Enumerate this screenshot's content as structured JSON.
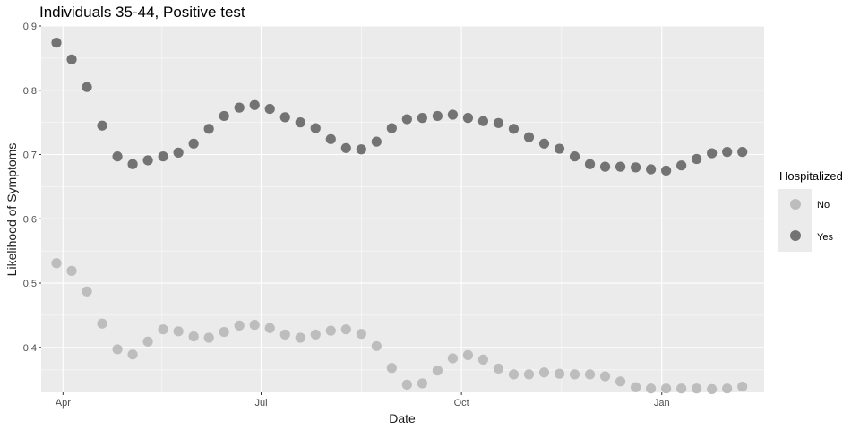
{
  "chart_data": {
    "type": "scatter",
    "title": "Individuals 35-44, Positive test",
    "xlabel": "Date",
    "ylabel": "Likelihood of Symptoms",
    "x_ticks": [
      "Apr",
      "Jul",
      "Oct",
      "Jan"
    ],
    "y_ticks": [
      "0.4",
      "0.5",
      "0.6",
      "0.7",
      "0.8",
      "0.9"
    ],
    "x_tick_dates": [
      "2020-04-01",
      "2020-07-01",
      "2020-10-01",
      "2021-01-01"
    ],
    "xlim": [
      "2020-03-22",
      "2021-02-17"
    ],
    "ylim": [
      0.33,
      0.9
    ],
    "grid": true,
    "legend": {
      "title": "Hospitalized",
      "position": "right",
      "entries": [
        {
          "label": "No",
          "color": "#bdbdbd"
        },
        {
          "label": "Yes",
          "color": "#737373"
        }
      ]
    },
    "x": [
      "2020-03-29",
      "2020-04-05",
      "2020-04-12",
      "2020-04-19",
      "2020-04-26",
      "2020-05-03",
      "2020-05-10",
      "2020-05-17",
      "2020-05-24",
      "2020-05-31",
      "2020-06-07",
      "2020-06-14",
      "2020-06-21",
      "2020-06-28",
      "2020-07-05",
      "2020-07-12",
      "2020-07-19",
      "2020-07-26",
      "2020-08-02",
      "2020-08-09",
      "2020-08-16",
      "2020-08-23",
      "2020-08-30",
      "2020-09-06",
      "2020-09-13",
      "2020-09-20",
      "2020-09-27",
      "2020-10-04",
      "2020-10-11",
      "2020-10-18",
      "2020-10-25",
      "2020-11-01",
      "2020-11-08",
      "2020-11-15",
      "2020-11-22",
      "2020-11-29",
      "2020-12-06",
      "2020-12-13",
      "2020-12-20",
      "2020-12-27",
      "2021-01-03",
      "2021-01-10",
      "2021-01-17",
      "2021-01-24",
      "2021-01-31",
      "2021-02-07"
    ],
    "series": [
      {
        "name": "No",
        "color": "#bdbdbd",
        "values": [
          0.531,
          0.519,
          0.487,
          0.437,
          0.397,
          0.389,
          0.409,
          0.428,
          0.425,
          0.417,
          0.415,
          0.424,
          0.434,
          0.435,
          0.43,
          0.42,
          0.415,
          0.42,
          0.426,
          0.428,
          0.421,
          0.402,
          0.368,
          0.342,
          0.344,
          0.364,
          0.383,
          0.388,
          0.381,
          0.367,
          0.358,
          0.358,
          0.361,
          0.359,
          0.358,
          0.358,
          0.355,
          0.347,
          0.338,
          0.336,
          0.336,
          0.336,
          0.336,
          0.335,
          0.336,
          0.339
        ]
      },
      {
        "name": "Yes",
        "color": "#737373",
        "values": [
          0.874,
          0.848,
          0.805,
          0.745,
          0.697,
          0.685,
          0.691,
          0.697,
          0.703,
          0.717,
          0.74,
          0.76,
          0.773,
          0.777,
          0.771,
          0.758,
          0.75,
          0.741,
          0.724,
          0.71,
          0.708,
          0.72,
          0.741,
          0.755,
          0.757,
          0.76,
          0.762,
          0.757,
          0.752,
          0.749,
          0.74,
          0.727,
          0.717,
          0.709,
          0.697,
          0.685,
          0.681,
          0.681,
          0.68,
          0.677,
          0.675,
          0.683,
          0.693,
          0.702,
          0.704,
          0.704
        ]
      }
    ]
  }
}
